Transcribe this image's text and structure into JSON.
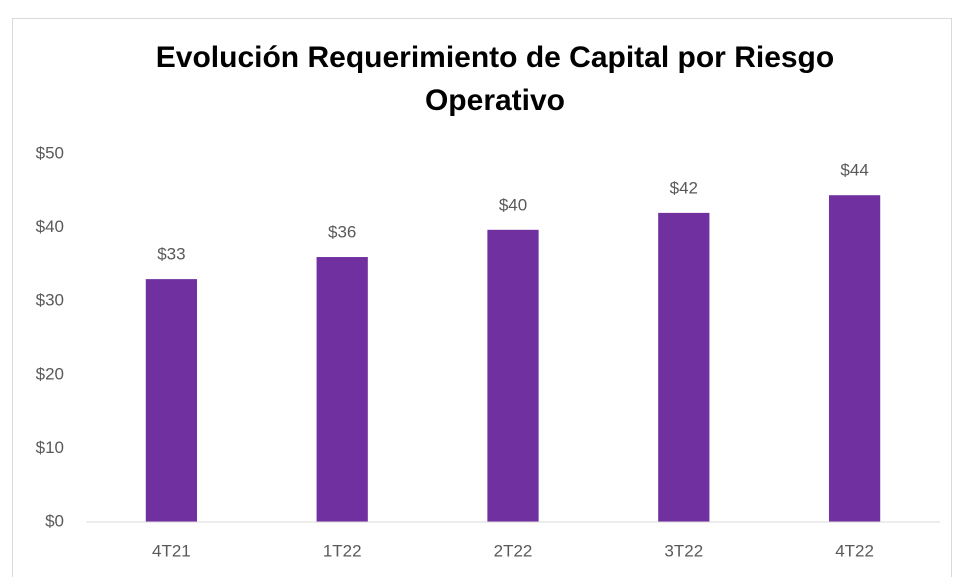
{
  "chart_data": {
    "type": "bar",
    "title": "Evolución Requerimiento de Capital por Riesgo Operativo",
    "categories": [
      "4T21",
      "1T22",
      "2T22",
      "3T22",
      "4T22"
    ],
    "values": [
      33,
      36,
      39.7,
      42,
      44.4
    ],
    "value_labels": [
      "$33",
      "$36",
      "$40",
      "$42",
      "$44"
    ],
    "color": "#7030a0",
    "ylim": [
      0,
      50
    ],
    "yticks": [
      {
        "value": 0,
        "label": "$0"
      },
      {
        "value": 10,
        "label": "$10"
      },
      {
        "value": 20,
        "label": "$20"
      },
      {
        "value": 30,
        "label": "$30"
      },
      {
        "value": 40,
        "label": "$40"
      },
      {
        "value": 50,
        "label": "$50"
      }
    ],
    "grid": false
  }
}
